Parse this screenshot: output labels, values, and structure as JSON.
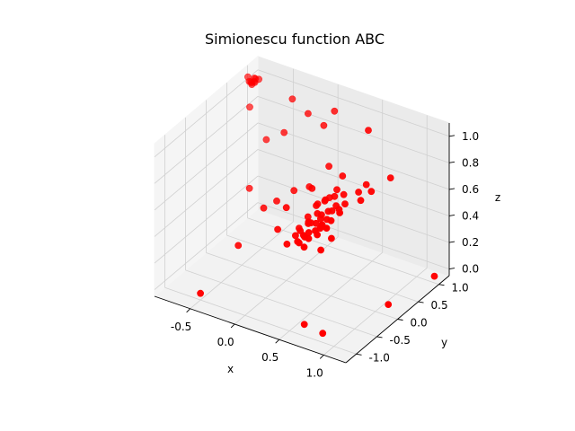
{
  "chart_data": {
    "type": "scatter",
    "projection": "3d",
    "title": "Simionescu function ABC",
    "xlabel": "x",
    "ylabel": "y",
    "zlabel": "z",
    "xlim": [
      -0.9,
      1.25
    ],
    "ylim": [
      -1.25,
      1.25
    ],
    "zlim": [
      -0.05,
      1.1
    ],
    "xticks": [
      "-0.5",
      "0.0",
      "0.5",
      "1.0"
    ],
    "yticks": [
      "-1.0",
      "-0.5",
      "0.0",
      "0.5",
      "1.0"
    ],
    "zticks": [
      "0.0",
      "0.2",
      "0.4",
      "0.6",
      "0.8",
      "1.0"
    ],
    "grid": true,
    "legend": false,
    "series": [
      {
        "color": "#ff0000",
        "marker": "circle",
        "points": [
          [
            -0.85,
            0.9,
            1.05
          ],
          [
            -0.82,
            0.87,
            1.03
          ],
          [
            -0.8,
            0.95,
            1.04
          ],
          [
            -0.78,
            0.92,
            1.02
          ],
          [
            -0.76,
            0.89,
            1.06
          ],
          [
            -0.83,
            0.93,
            1.01
          ],
          [
            -0.79,
            0.86,
            1.03
          ],
          [
            -0.74,
            0.93,
            1.05
          ],
          [
            -0.81,
            0.91,
            1.0
          ],
          [
            -0.77,
            0.88,
            1.04
          ],
          [
            -0.8,
            0.84,
            0.85
          ],
          [
            -0.35,
            0.9,
            1.0
          ],
          [
            -0.15,
            0.85,
            0.95
          ],
          [
            0.1,
            0.95,
            1.0
          ],
          [
            0.05,
            0.8,
            0.92
          ],
          [
            -0.55,
            0.7,
            0.7
          ],
          [
            -0.6,
            0.4,
            0.4
          ],
          [
            0.15,
            0.3,
            0.6
          ],
          [
            0.2,
            0.6,
            0.7
          ],
          [
            -0.3,
            0.1,
            0.4
          ],
          [
            -0.2,
            0.2,
            0.45
          ],
          [
            0.4,
            0.5,
            0.7
          ],
          [
            0.0,
            0.0,
            0.5
          ],
          [
            -0.4,
            -0.3,
            0.2
          ],
          [
            -0.35,
            0.7,
            0.8
          ],
          [
            0.55,
            0.8,
            1.0
          ],
          [
            0.6,
            0.0,
            0.6
          ],
          [
            0.3,
            -0.2,
            0.4
          ],
          [
            0.5,
            0.2,
            0.55
          ],
          [
            0.35,
            0.1,
            0.5
          ],
          [
            0.25,
            0.0,
            0.45
          ],
          [
            0.45,
            -0.1,
            0.5
          ],
          [
            0.15,
            -0.1,
            0.35
          ],
          [
            0.3,
            0.3,
            0.55
          ],
          [
            0.4,
            0.0,
            0.45
          ],
          [
            0.2,
            0.1,
            0.4
          ],
          [
            0.35,
            -0.05,
            0.42
          ],
          [
            0.28,
            0.15,
            0.48
          ],
          [
            0.42,
            0.2,
            0.52
          ],
          [
            0.32,
            -0.15,
            0.38
          ],
          [
            0.22,
            0.25,
            0.5
          ],
          [
            0.38,
            0.35,
            0.58
          ],
          [
            0.18,
            -0.05,
            0.38
          ],
          [
            0.48,
            0.05,
            0.5
          ],
          [
            0.26,
            -0.25,
            0.36
          ],
          [
            0.36,
            0.45,
            0.6
          ],
          [
            0.44,
            -0.2,
            0.45
          ],
          [
            0.12,
            0.05,
            0.36
          ],
          [
            0.31,
            0.05,
            0.44
          ],
          [
            0.27,
            0.35,
            0.52
          ],
          [
            0.41,
            0.1,
            0.48
          ],
          [
            0.34,
            -0.3,
            0.36
          ],
          [
            0.52,
            0.3,
            0.57
          ],
          [
            0.19,
            0.35,
            0.48
          ],
          [
            0.29,
            -0.08,
            0.4
          ],
          [
            0.37,
            0.22,
            0.5
          ],
          [
            0.24,
            0.08,
            0.42
          ],
          [
            0.46,
            0.4,
            0.6
          ],
          [
            0.33,
            0.12,
            0.46
          ],
          [
            0.39,
            -0.02,
            0.44
          ],
          [
            0.21,
            -0.18,
            0.34
          ],
          [
            0.43,
            0.28,
            0.54
          ],
          [
            0.3,
            0.4,
            0.54
          ],
          [
            0.16,
            0.18,
            0.42
          ],
          [
            0.49,
            -0.08,
            0.48
          ],
          [
            0.25,
            -0.12,
            0.38
          ],
          [
            0.58,
            0.5,
            0.62
          ],
          [
            0.62,
            0.6,
            0.66
          ],
          [
            0.65,
            0.4,
            0.6
          ],
          [
            0.7,
            0.55,
            0.64
          ],
          [
            0.8,
            0.8,
            0.7
          ],
          [
            -0.1,
            0.4,
            0.5
          ],
          [
            0.05,
            0.45,
            0.55
          ],
          [
            0.1,
            -0.2,
            0.3
          ],
          [
            -0.05,
            -0.1,
            0.35
          ],
          [
            0.55,
            -0.35,
            0.4
          ],
          [
            0.6,
            -0.2,
            0.46
          ],
          [
            -0.5,
            -1.0,
            0.0
          ],
          [
            0.62,
            -0.9,
            0.0
          ],
          [
            0.85,
            -0.95,
            0.0
          ],
          [
            1.1,
            0.1,
            0.0
          ],
          [
            1.2,
            1.0,
            0.0
          ]
        ]
      }
    ]
  }
}
